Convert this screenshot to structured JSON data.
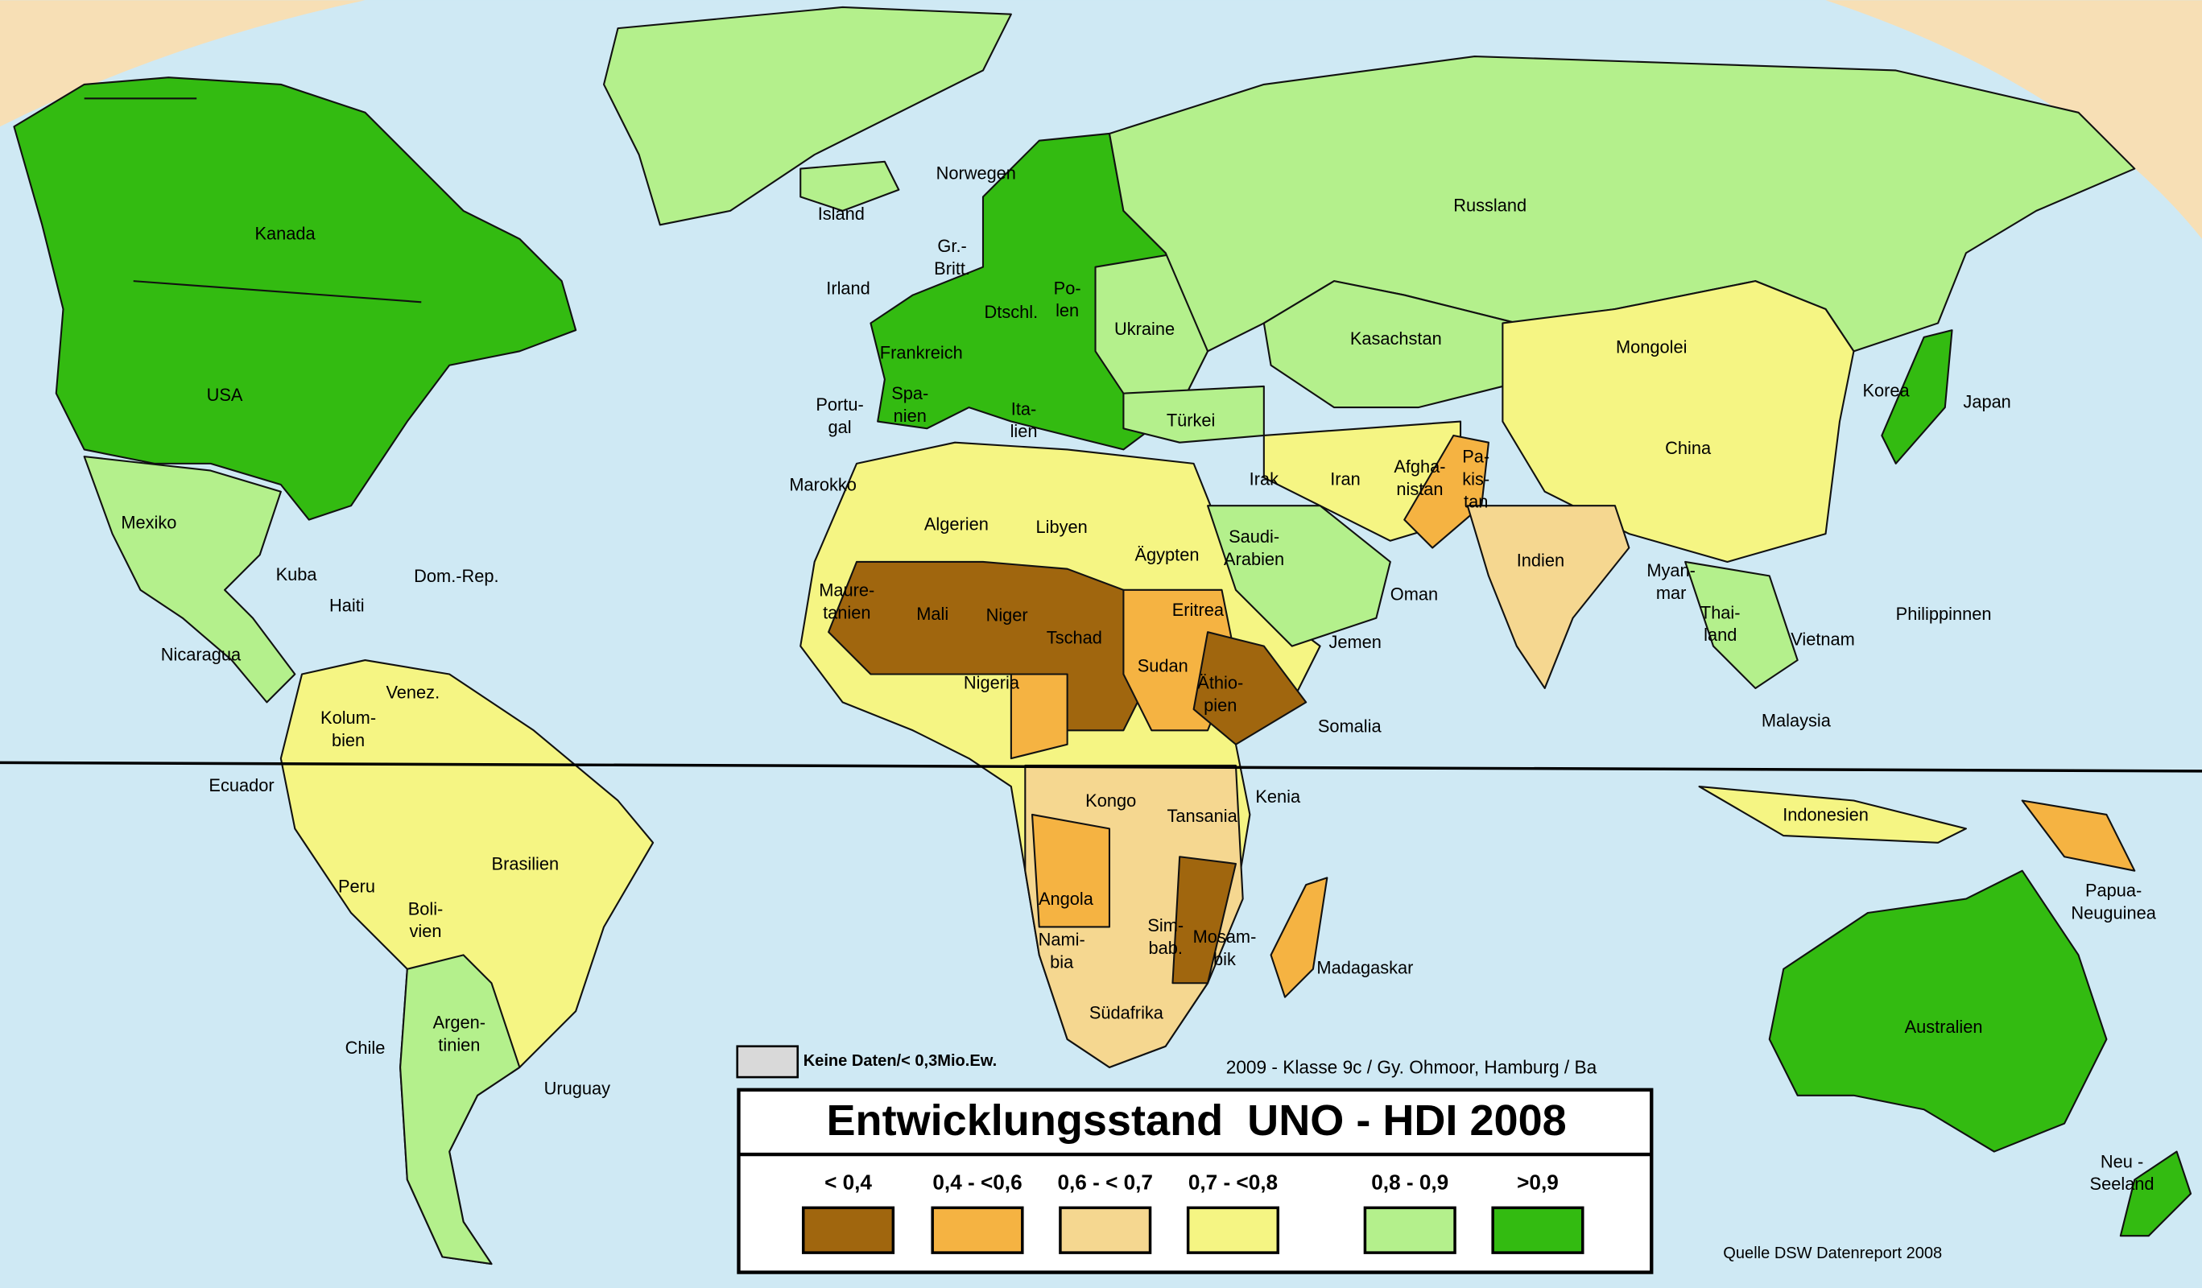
{
  "map": {
    "title": "Entwicklungsstand  UNO - HDI 2008",
    "credit": "2009 - Klasse 9c / Gy. Ohmoor, Hamburg / Ba",
    "source": "Quelle DSW Datenreport 2008",
    "no_data": {
      "label": "Keine Daten/< 0,3Mio.Ew.",
      "color": "#d9d9d9"
    },
    "legend": [
      {
        "label": "< 0,4",
        "color": "#a0660e"
      },
      {
        "label": "0,4 - <0,6",
        "color": "#f5b342"
      },
      {
        "label": "0,6 - < 0,7",
        "color": "#f5d790"
      },
      {
        "label": "0,7 - <0,8",
        "color": "#f5f583"
      },
      {
        "label": "0,8 - 0,9",
        "color": "#b4f08c"
      },
      {
        "label": ">0,9",
        "color": "#33bb11"
      }
    ],
    "labels": [
      [
        "Kanada"
      ],
      [
        "USA"
      ],
      [
        "Mexiko"
      ],
      [
        "Kuba"
      ],
      [
        "Haiti"
      ],
      [
        "Dom.-Rep."
      ],
      [
        "Nicaragua"
      ],
      [
        "Venez."
      ],
      [
        "Kolum-",
        "bien"
      ],
      [
        "Ecuador"
      ],
      [
        "Peru"
      ],
      [
        "Boli-",
        "vien"
      ],
      [
        "Brasilien"
      ],
      [
        "Chile"
      ],
      [
        "Argen-",
        "tinien"
      ],
      [
        "Uruguay"
      ],
      [
        "Island"
      ],
      [
        "Norwegen"
      ],
      [
        "Gr.-",
        "Britt."
      ],
      [
        "Irland"
      ],
      [
        "Dtschl."
      ],
      [
        "Po-",
        "len"
      ],
      [
        "Frankreich"
      ],
      [
        "Ukraine"
      ],
      [
        "Portu-",
        "gal"
      ],
      [
        "Spa-",
        "nien"
      ],
      [
        "Ita-",
        "lien"
      ],
      [
        "Türkei"
      ],
      [
        "Marokko"
      ],
      [
        "Algerien"
      ],
      [
        "Libyen"
      ],
      [
        "Ägypten"
      ],
      [
        "Maure-",
        "tanien"
      ],
      [
        "Mali"
      ],
      [
        "Niger"
      ],
      [
        "Tschad"
      ],
      [
        "Sudan"
      ],
      [
        "Eritrea"
      ],
      [
        "Äthio-",
        "pien"
      ],
      [
        "Somalia"
      ],
      [
        "Nigeria"
      ],
      [
        "Kongo"
      ],
      [
        "Kenia"
      ],
      [
        "Tansania"
      ],
      [
        "Angola"
      ],
      [
        "Nami-",
        "bia"
      ],
      [
        "Sim-",
        "bab."
      ],
      [
        "Mosam-",
        "bik"
      ],
      [
        "Südafrika"
      ],
      [
        "Madagaskar"
      ],
      [
        "Russland"
      ],
      [
        "Kasachstan"
      ],
      [
        "Mongolei"
      ],
      [
        "China"
      ],
      [
        "Korea"
      ],
      [
        "Japan"
      ],
      [
        "Irak"
      ],
      [
        "Iran"
      ],
      [
        "Afgha-",
        "nistan"
      ],
      [
        "Pa-",
        "kis-",
        "tan"
      ],
      [
        "Saudi-",
        "Arabien"
      ],
      [
        "Oman"
      ],
      [
        "Jemen"
      ],
      [
        "Indien"
      ],
      [
        "Myan-",
        "mar"
      ],
      [
        "Thai-",
        "land"
      ],
      [
        "Vietnam"
      ],
      [
        "Philippinnen"
      ],
      [
        "Malaysia"
      ],
      [
        "Indonesien"
      ],
      [
        "Papua-",
        "Neuguinea"
      ],
      [
        "Australien"
      ],
      [
        "Neu -",
        "Seeland"
      ]
    ]
  }
}
